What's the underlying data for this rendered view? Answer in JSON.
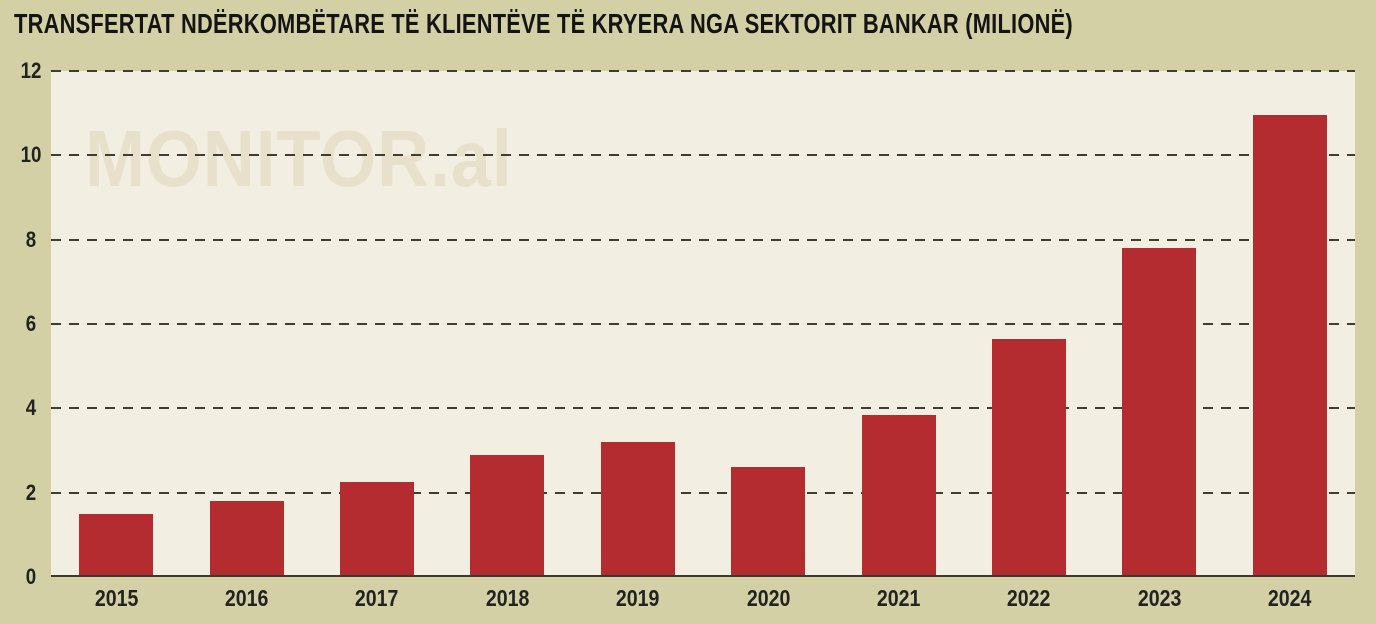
{
  "title": "TRANSFERTAT NDËRKOMBËTARE TË KLIENTËVE TË KRYERA NGA SEKTORIT BANKAR (MILIONË)",
  "watermark": "MONITOR.al",
  "colors": {
    "background": "#d4d0a5",
    "plot_background": "#f2efe2",
    "bar": "#b42b30",
    "watermark": "#e7e1cb",
    "gridline": "#3e3d33",
    "axis_line": "#3a3930",
    "title_text": "#141414",
    "tick_text": "#222220"
  },
  "chart_data": {
    "type": "bar",
    "title": "TRANSFERTAT NDËRKOMBËTARE TË KLIENTËVE TË KRYERA NGA SEKTORIT BANKAR (MILIONË)",
    "categories": [
      "2015",
      "2016",
      "2017",
      "2018",
      "2019",
      "2020",
      "2021",
      "2022",
      "2023",
      "2024"
    ],
    "values": [
      1.5,
      1.8,
      2.25,
      2.9,
      3.2,
      2.6,
      3.85,
      5.65,
      7.8,
      10.95
    ],
    "xlabel": "",
    "ylabel": "",
    "ylim": [
      0,
      12
    ],
    "yticks": [
      0,
      2,
      4,
      6,
      8,
      10,
      12
    ],
    "grid": "horizontal-dashed",
    "legend": "none",
    "bar_color": "#b42b30",
    "watermark_text": "MONITOR.al"
  }
}
